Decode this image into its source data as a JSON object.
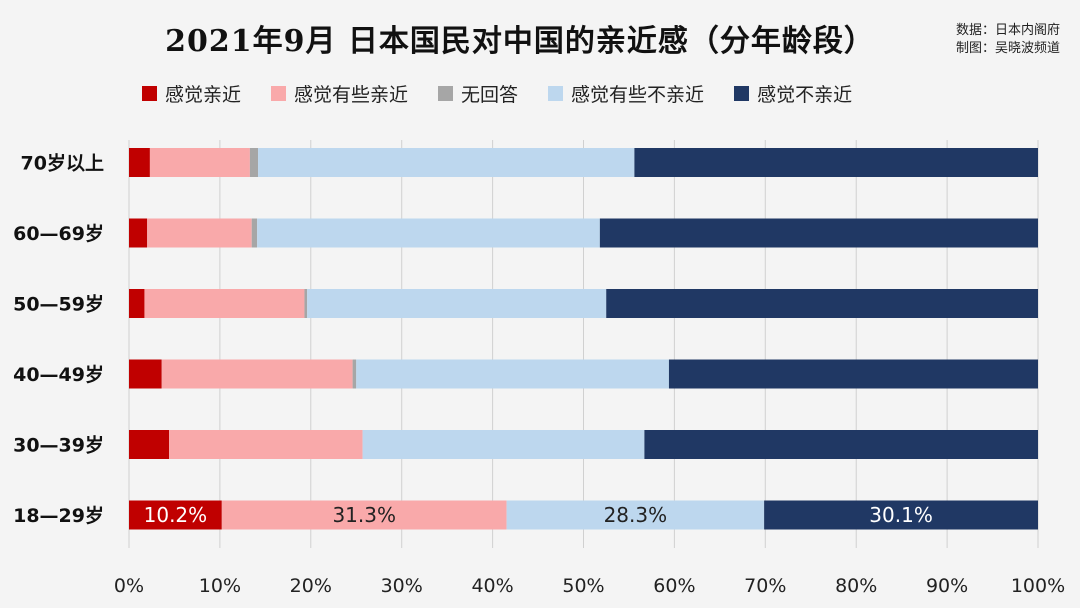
{
  "header": {
    "title": "2021年9月 日本国民对中国的亲近感（分年龄段）",
    "source_line1": "数据：日本内阁府",
    "source_line2": "制图：吴晓波频道"
  },
  "chart_data": {
    "type": "bar",
    "orientation": "horizontal",
    "stacked": "percent",
    "title": "2021年9月 日本国民对中国的亲近感（分年龄段）",
    "xlabel": "",
    "ylabel": "",
    "xlim": [
      0,
      100
    ],
    "x_ticks": [
      "0%",
      "10%",
      "20%",
      "30%",
      "40%",
      "50%",
      "60%",
      "70%",
      "80%",
      "90%",
      "100%"
    ],
    "categories": [
      "70岁以上",
      "60—69岁",
      "50—59岁",
      "40—49岁",
      "30—39岁",
      "18—29岁"
    ],
    "legend_position": "top",
    "grid": true,
    "series": [
      {
        "name": "感觉亲近",
        "color": "#c00000",
        "values": [
          2.3,
          2.0,
          1.7,
          3.6,
          4.4,
          10.2
        ]
      },
      {
        "name": "感觉有些亲近",
        "color": "#f9a9aa",
        "values": [
          11.0,
          11.5,
          17.6,
          21.0,
          21.3,
          31.3
        ]
      },
      {
        "name": "无回答",
        "color": "#a6a6a6",
        "values": [
          0.9,
          0.6,
          0.3,
          0.4,
          0.0,
          0.0
        ]
      },
      {
        "name": "感觉有些不亲近",
        "color": "#bdd7ee",
        "values": [
          41.4,
          37.7,
          32.9,
          34.4,
          31.0,
          28.3
        ]
      },
      {
        "name": "感觉不亲近",
        "color": "#203864",
        "values": [
          44.4,
          48.2,
          47.5,
          40.6,
          43.3,
          30.1
        ]
      }
    ],
    "data_labels": [
      {
        "category": "18—29岁",
        "series": "感觉亲近",
        "text": "10.2%",
        "color": "#ffffff"
      },
      {
        "category": "18—29岁",
        "series": "感觉有些亲近",
        "text": "31.3%",
        "color": "#222222"
      },
      {
        "category": "18—29岁",
        "series": "感觉有些不亲近",
        "text": "28.3%",
        "color": "#222222"
      },
      {
        "category": "18—29岁",
        "series": "感觉不亲近",
        "text": "30.1%",
        "color": "#ffffff"
      }
    ]
  }
}
